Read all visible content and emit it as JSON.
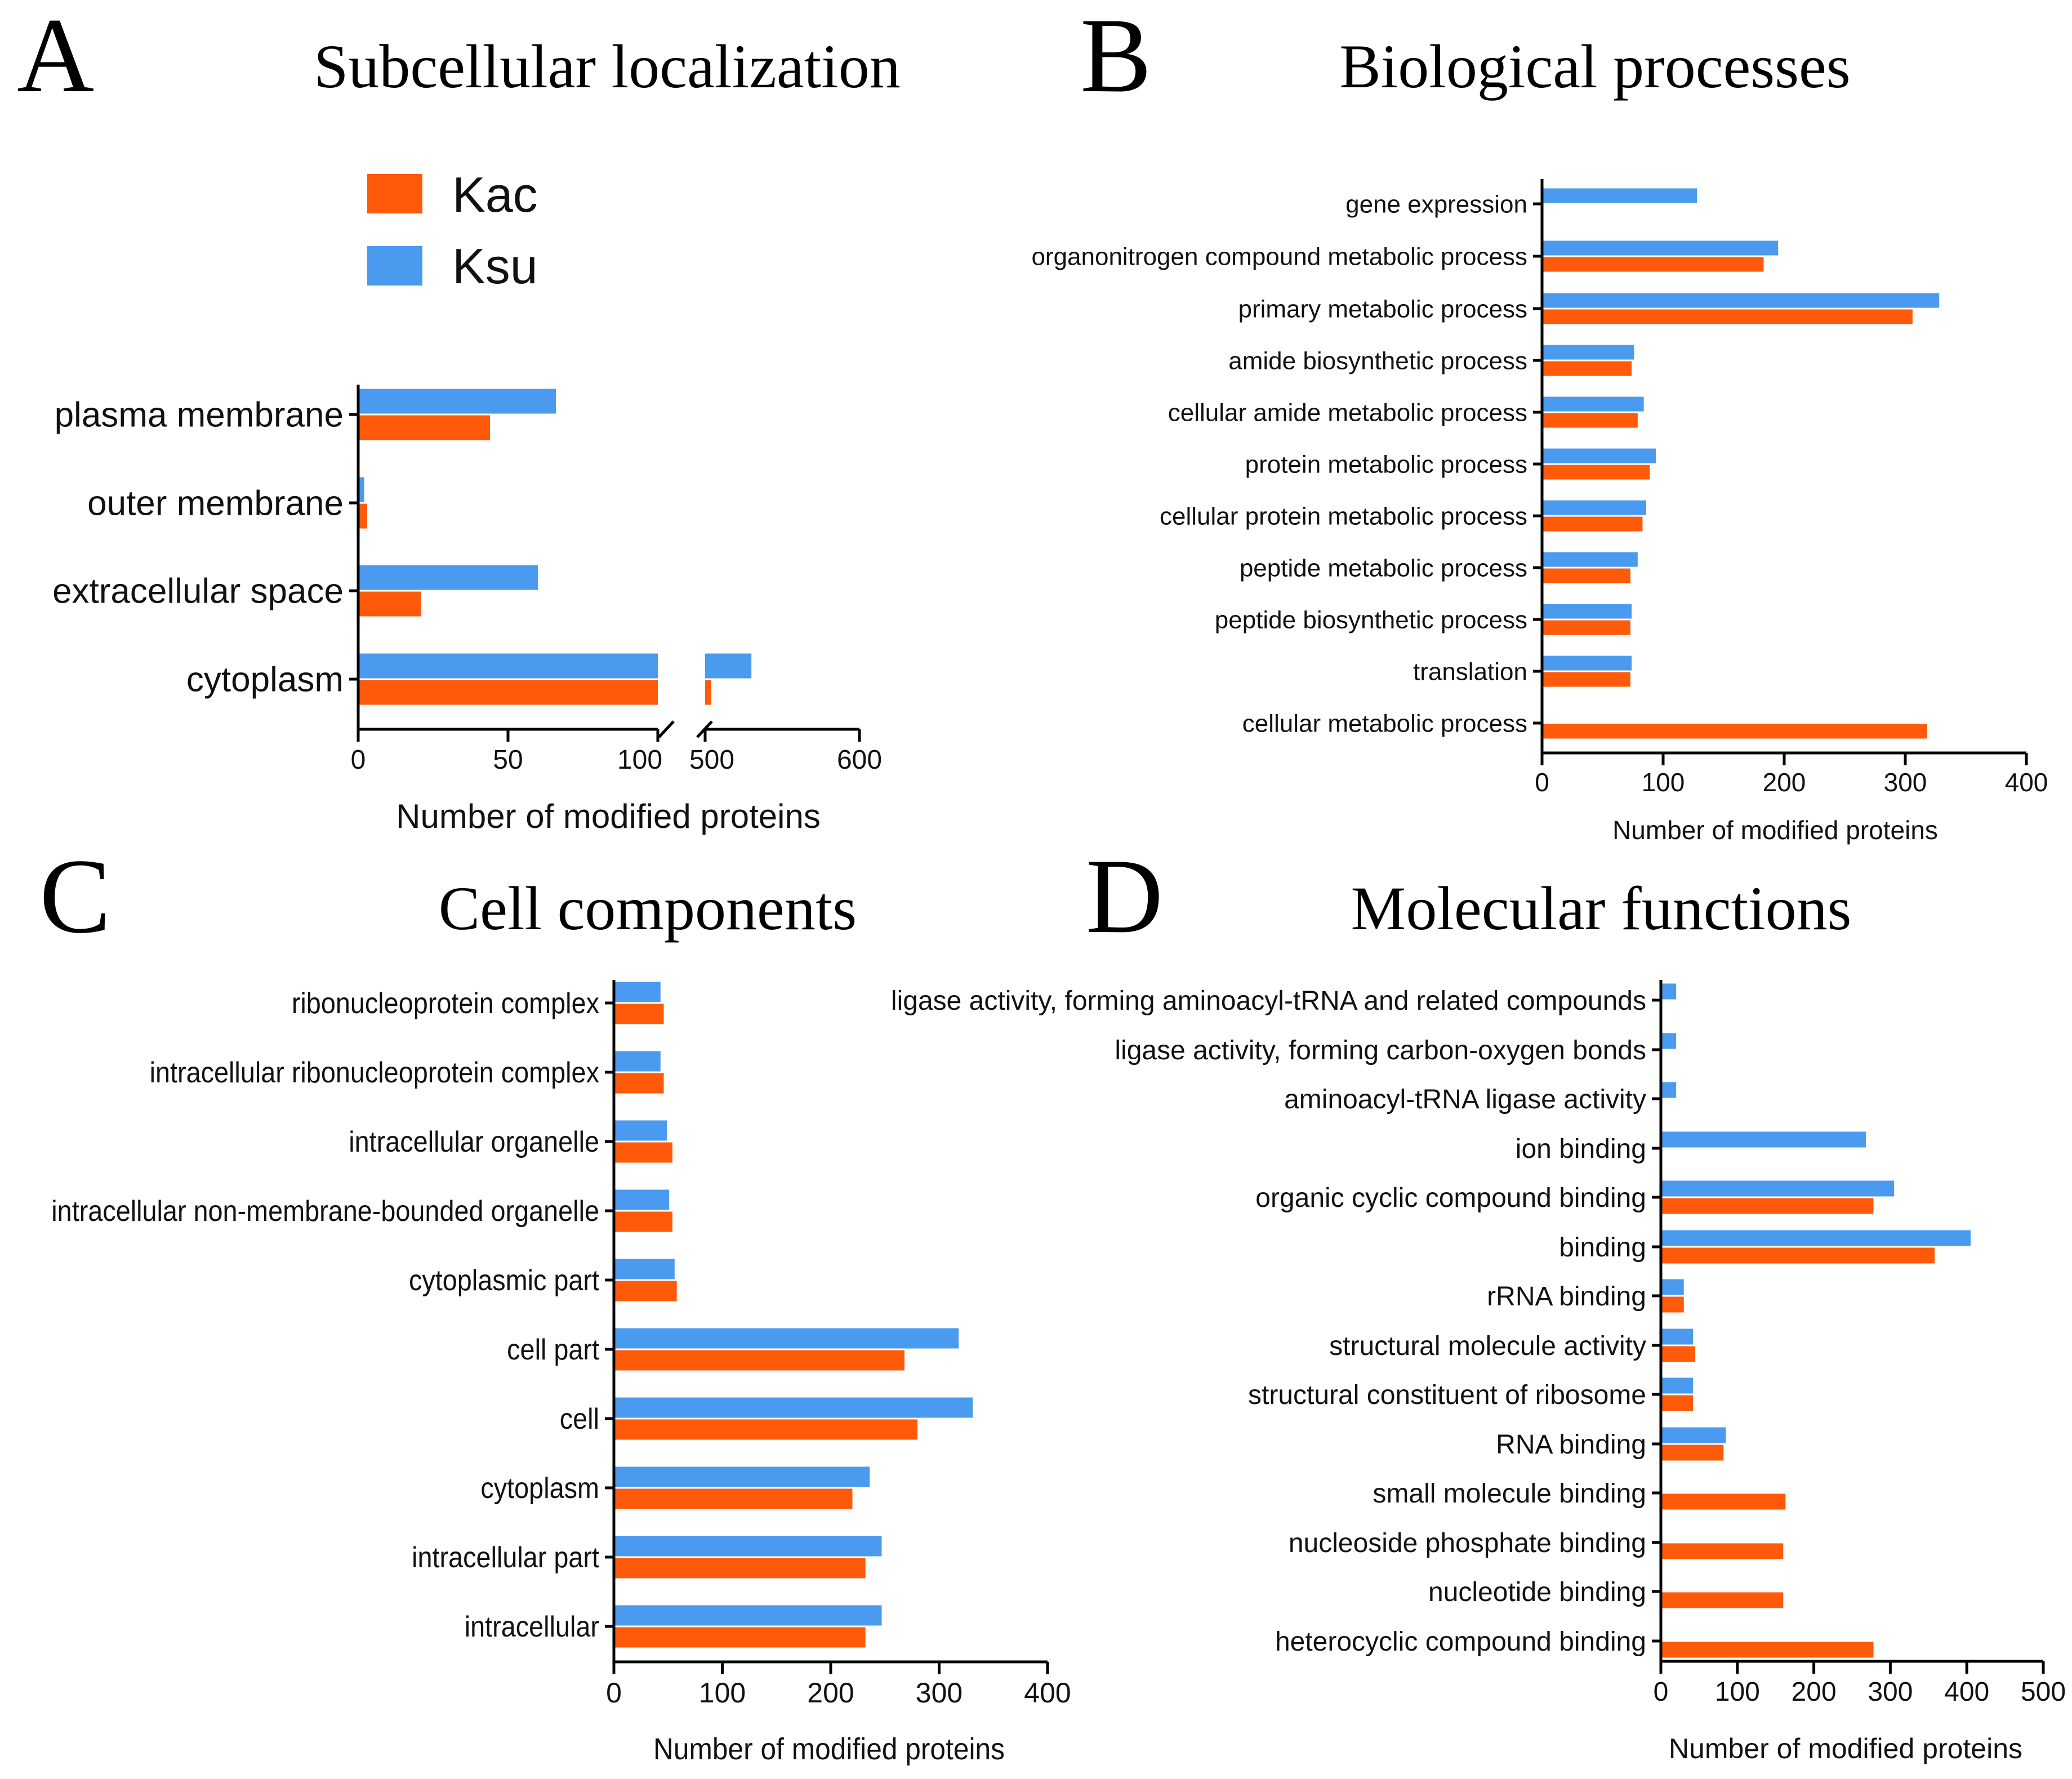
{
  "colors": {
    "kac": "#ff5a0a",
    "ksu": "#4a9bf0",
    "axis": "#000000"
  },
  "legend": {
    "kac": "Kac",
    "ksu": "Ksu"
  },
  "chart_data": [
    {
      "id": "A",
      "panel_letter": "A",
      "type": "bar",
      "orientation": "horizontal",
      "title": "Subcellular localization",
      "xlabel": "Number of modified proteins",
      "categories": [
        "plasma membrane",
        "outer membrane",
        "extracellular space",
        "cytoplasm"
      ],
      "series": [
        {
          "name": "Ksu",
          "values": [
            66,
            2,
            60,
            530
          ]
        },
        {
          "name": "Kac",
          "values": [
            44,
            3,
            21,
            504
          ]
        }
      ],
      "axis_break": {
        "segments": [
          [
            0,
            100
          ],
          [
            500,
            600
          ]
        ]
      },
      "ticks": [
        0,
        50,
        100,
        500,
        600
      ],
      "tick_labels": [
        "0",
        "50",
        "100",
        "500",
        "600"
      ]
    },
    {
      "id": "B",
      "panel_letter": "B",
      "type": "bar",
      "orientation": "horizontal",
      "title": "Biological processes",
      "xlabel": "Number of modified proteins",
      "xlim": [
        0,
        400
      ],
      "ticks": [
        0,
        100,
        200,
        300,
        400
      ],
      "tick_labels": [
        "0",
        "100",
        "200",
        "300",
        "400"
      ],
      "categories": [
        "gene expression",
        "organonitrogen compound metabolic process",
        "primary metabolic process",
        "amide biosynthetic process",
        "cellular amide metabolic process",
        "protein metabolic process",
        "cellular protein metabolic process",
        "peptide metabolic process",
        "peptide biosynthetic process",
        "translation",
        "cellular metabolic process"
      ],
      "series": [
        {
          "name": "Ksu",
          "values": [
            128,
            195,
            328,
            76,
            84,
            94,
            86,
            79,
            74,
            74,
            null
          ]
        },
        {
          "name": "Kac",
          "values": [
            null,
            183,
            306,
            74,
            79,
            89,
            83,
            73,
            73,
            73,
            318
          ]
        }
      ]
    },
    {
      "id": "C",
      "panel_letter": "C",
      "type": "bar",
      "orientation": "horizontal",
      "title": "Cell components",
      "xlabel": "Number of modified proteins",
      "xlim": [
        0,
        400
      ],
      "ticks": [
        0,
        100,
        200,
        300,
        400
      ],
      "tick_labels": [
        "0",
        "100",
        "200",
        "300",
        "400"
      ],
      "categories": [
        "ribonucleoprotein complex",
        "intracellular ribonucleoprotein complex",
        "intracellular organelle",
        "intracellular non-membrane-bounded organelle",
        "cytoplasmic part",
        "cell part",
        "cell",
        "cytoplasm",
        "intracellular part",
        "intracellular"
      ],
      "series": [
        {
          "name": "Ksu",
          "values": [
            43,
            43,
            49,
            51,
            56,
            318,
            331,
            236,
            247,
            247
          ]
        },
        {
          "name": "Kac",
          "values": [
            46,
            46,
            54,
            54,
            58,
            268,
            280,
            220,
            232,
            232
          ]
        }
      ]
    },
    {
      "id": "D",
      "panel_letter": "D",
      "type": "bar",
      "orientation": "horizontal",
      "title": "Molecular functions",
      "xlabel": "Number of modified proteins",
      "xlim": [
        0,
        500
      ],
      "ticks": [
        0,
        100,
        200,
        300,
        400,
        500
      ],
      "tick_labels": [
        "0",
        "100",
        "200",
        "300",
        "400",
        "500"
      ],
      "categories": [
        "ligase activity, forming aminoacyl-tRNA and related compounds",
        "ligase activity, forming carbon-oxygen bonds",
        "aminoacyl-tRNA ligase activity",
        "ion binding",
        "organic cyclic compound binding",
        "binding",
        "rRNA binding",
        "structural molecule activity",
        "structural constituent of ribosome",
        "RNA binding",
        "small molecule binding",
        "nucleoside phosphate binding",
        "nucleotide binding",
        "heterocyclic compound binding"
      ],
      "series": [
        {
          "name": "Ksu",
          "values": [
            20,
            20,
            20,
            268,
            305,
            405,
            30,
            42,
            42,
            85,
            null,
            null,
            null,
            null
          ]
        },
        {
          "name": "Kac",
          "values": [
            null,
            null,
            null,
            null,
            278,
            358,
            30,
            45,
            42,
            82,
            163,
            160,
            160,
            278
          ]
        }
      ]
    }
  ]
}
